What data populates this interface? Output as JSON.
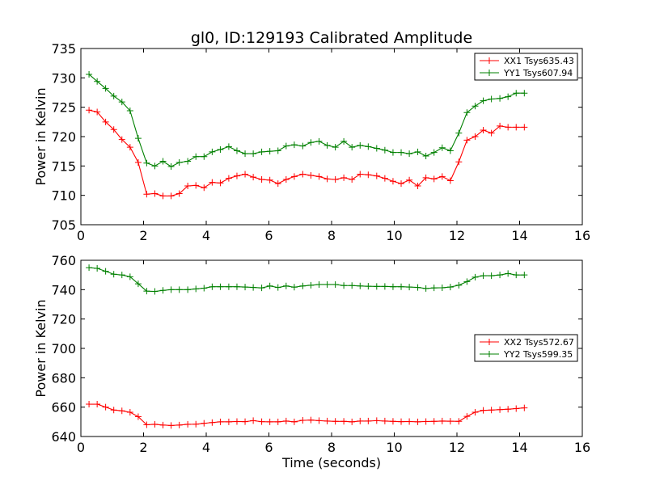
{
  "figure": {
    "title": "gl0, ID:129193 Calibrated Amplitude",
    "xlabel": "Time (seconds)"
  },
  "colors": {
    "xx": "#ff0000",
    "yy": "#008000"
  },
  "chart_data": [
    {
      "type": "line",
      "title": "gl0, ID:129193 Calibrated Amplitude",
      "xlabel": "",
      "ylabel": "Power in Kelvin",
      "xlim": [
        0,
        16
      ],
      "ylim": [
        705,
        735
      ],
      "xticks": [
        0,
        2,
        4,
        6,
        8,
        10,
        12,
        14,
        16
      ],
      "yticks": [
        705,
        710,
        715,
        720,
        725,
        730,
        735
      ],
      "grid": false,
      "legend_position": "top-right",
      "x": [
        0.26,
        0.52,
        0.79,
        1.05,
        1.31,
        1.57,
        1.83,
        2.1,
        2.36,
        2.62,
        2.88,
        3.14,
        3.41,
        3.67,
        3.93,
        4.19,
        4.45,
        4.72,
        4.98,
        5.24,
        5.5,
        5.77,
        6.03,
        6.29,
        6.55,
        6.81,
        7.08,
        7.34,
        7.6,
        7.86,
        8.12,
        8.39,
        8.65,
        8.91,
        9.17,
        9.44,
        9.7,
        9.96,
        10.22,
        10.48,
        10.75,
        11.01,
        11.27,
        11.53,
        11.79,
        12.06,
        12.32,
        12.58,
        12.84,
        13.1,
        13.37,
        13.63,
        13.89,
        14.15
      ],
      "series": [
        {
          "name": "XX1 Tsys635.43",
          "color": "#ff0000",
          "values": [
            724.5,
            724.2,
            722.5,
            721.2,
            719.5,
            718.2,
            715.6,
            710.2,
            710.3,
            709.9,
            709.9,
            710.3,
            711.6,
            711.7,
            711.3,
            712.2,
            712.1,
            712.9,
            713.3,
            713.6,
            713.1,
            712.7,
            712.6,
            712.0,
            712.7,
            713.2,
            713.6,
            713.4,
            713.2,
            712.8,
            712.7,
            713.0,
            712.7,
            713.6,
            713.5,
            713.3,
            712.9,
            712.4,
            712.0,
            712.6,
            711.6,
            713.0,
            712.8,
            713.2,
            712.5,
            715.7,
            719.4,
            720.0,
            721.1,
            720.6,
            721.8,
            721.6,
            721.6,
            721.6
          ]
        },
        {
          "name": "YY1 Tsys607.94",
          "color": "#008000",
          "values": [
            730.6,
            729.4,
            728.2,
            726.9,
            725.9,
            724.4,
            719.7,
            715.5,
            715.0,
            715.8,
            714.9,
            715.6,
            715.8,
            716.6,
            716.6,
            717.4,
            717.8,
            718.3,
            717.6,
            717.1,
            717.1,
            717.4,
            717.5,
            717.6,
            718.4,
            718.6,
            718.4,
            719.0,
            719.2,
            718.5,
            718.2,
            719.2,
            718.2,
            718.5,
            718.3,
            718.0,
            717.7,
            717.3,
            717.3,
            717.1,
            717.4,
            716.7,
            717.3,
            718.1,
            717.6,
            720.6,
            724.1,
            725.2,
            726.1,
            726.4,
            726.5,
            726.8,
            727.4,
            727.4
          ]
        }
      ]
    },
    {
      "type": "line",
      "title": "",
      "xlabel": "Time (seconds)",
      "ylabel": "Power in Kelvin",
      "xlim": [
        0,
        16
      ],
      "ylim": [
        640,
        760
      ],
      "xticks": [
        0,
        2,
        4,
        6,
        8,
        10,
        12,
        14,
        16
      ],
      "yticks": [
        640,
        660,
        680,
        700,
        720,
        740,
        760
      ],
      "grid": false,
      "legend_position": "center-right",
      "x": [
        0.26,
        0.52,
        0.79,
        1.05,
        1.31,
        1.57,
        1.83,
        2.1,
        2.36,
        2.62,
        2.88,
        3.14,
        3.41,
        3.67,
        3.93,
        4.19,
        4.45,
        4.72,
        4.98,
        5.24,
        5.5,
        5.77,
        6.03,
        6.29,
        6.55,
        6.81,
        7.08,
        7.34,
        7.6,
        7.86,
        8.12,
        8.39,
        8.65,
        8.91,
        9.17,
        9.44,
        9.7,
        9.96,
        10.22,
        10.48,
        10.75,
        11.01,
        11.27,
        11.53,
        11.79,
        12.06,
        12.32,
        12.58,
        12.84,
        13.1,
        13.37,
        13.63,
        13.89,
        14.15
      ],
      "series": [
        {
          "name": "XX2 Tsys572.67",
          "color": "#ff0000",
          "values": [
            662,
            662,
            660,
            658,
            657.5,
            656.5,
            653.5,
            648,
            648.3,
            647.8,
            647.5,
            647.8,
            648.3,
            648.4,
            649,
            649.5,
            650,
            650,
            650.2,
            650.1,
            650.8,
            650.1,
            650,
            650,
            650.5,
            650,
            651,
            651.2,
            650.8,
            650.5,
            650.3,
            650.3,
            650,
            650.5,
            650.5,
            650.8,
            650.5,
            650.3,
            650.1,
            650.2,
            650,
            650.2,
            650.3,
            650.5,
            650.4,
            650.3,
            653.7,
            656.5,
            657.8,
            658,
            658.3,
            658.6,
            659,
            659.5
          ]
        },
        {
          "name": "YY2 Tsys599.35",
          "color": "#008000",
          "values": [
            755,
            754.5,
            752.5,
            750.5,
            750,
            748.8,
            744,
            739,
            738.8,
            739.5,
            740,
            740,
            740,
            740.5,
            741,
            742,
            742,
            742,
            742,
            741.8,
            741.5,
            741.2,
            742.5,
            741.5,
            742.5,
            741.7,
            742.5,
            743,
            743.5,
            743.5,
            743.5,
            742.8,
            742.8,
            742.5,
            742.3,
            742.2,
            742.2,
            742.0,
            742.0,
            741.8,
            741.5,
            740.8,
            741.2,
            741.3,
            741.8,
            743.0,
            745.5,
            748.5,
            749.5,
            749.5,
            750,
            751,
            750,
            750
          ]
        }
      ]
    }
  ]
}
